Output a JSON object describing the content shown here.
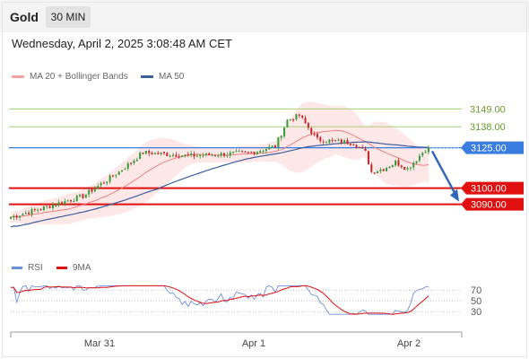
{
  "header": {
    "symbol": "Gold",
    "timeframe": "30 MIN",
    "datetime": "Wednesday, April 2, 2025 3:08:48 AM CET"
  },
  "legend": {
    "bb_label": "MA 20 + Bollinger Bands",
    "ma50_label": "MA 50",
    "rsi_label": "RSI",
    "rsi_ma_label": "9MA"
  },
  "colors": {
    "up": "#3a9b3a",
    "down": "#c62828",
    "bollinger_fill": "#fde3e3",
    "ma20": "#f08080",
    "ma50": "#3a5f9e",
    "green_level": "#a5d07a",
    "blue_level": "#3a7de0",
    "red_level": "#e01010",
    "rsi": "#6d8fdb",
    "rsi_ma": "#e01010",
    "arrow": "#2f66b8"
  },
  "chart_data": [
    {
      "type": "candlestick",
      "title": "",
      "y_range": [
        3062,
        3162
      ],
      "x_ticks": [
        "Mar 31",
        "Apr 1",
        "Apr 2"
      ],
      "levels": [
        {
          "value": 3149.0,
          "label": "3149.00",
          "style": "green-line"
        },
        {
          "value": 3138.0,
          "label": "3138.00",
          "style": "green-line"
        },
        {
          "value": 3125.0,
          "label": "3125.00",
          "style": "blue-badge"
        },
        {
          "value": 3100.0,
          "label": "3100.00",
          "style": "red-badge"
        },
        {
          "value": 3090.0,
          "label": "3090.00",
          "style": "red-badge"
        }
      ],
      "key_points": [
        {
          "x": 0,
          "close": 3082
        },
        {
          "x": 24,
          "close": 3095
        },
        {
          "x": 36,
          "close": 3110
        },
        {
          "x": 44,
          "close": 3122
        },
        {
          "x": 60,
          "close": 3120
        },
        {
          "x": 80,
          "close": 3122
        },
        {
          "x": 88,
          "close": 3126
        },
        {
          "x": 92,
          "close": 3142
        },
        {
          "x": 96,
          "close": 3145
        },
        {
          "x": 102,
          "close": 3130
        },
        {
          "x": 114,
          "close": 3128
        },
        {
          "x": 118,
          "close": 3122
        },
        {
          "x": 120,
          "close": 3110
        },
        {
          "x": 124,
          "close": 3112
        },
        {
          "x": 128,
          "close": 3116
        },
        {
          "x": 132,
          "close": 3112
        },
        {
          "x": 138,
          "close": 3124
        }
      ],
      "projection": {
        "from": 3124,
        "to": 3090
      }
    },
    {
      "type": "line",
      "name": "RSI panel",
      "y_ticks": [
        70,
        50,
        30
      ],
      "y_range": [
        22,
        82
      ]
    }
  ]
}
